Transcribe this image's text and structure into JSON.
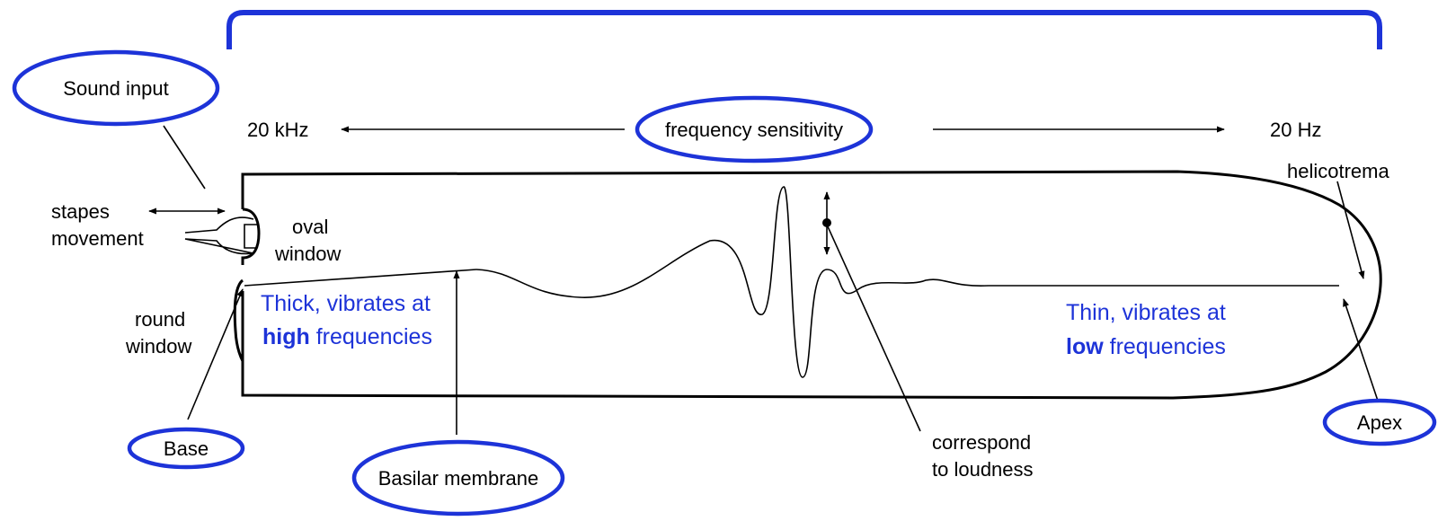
{
  "labels": {
    "sound_input": "Sound input",
    "frequency_sensitivity": "frequency sensitivity",
    "freq_high": "20 kHz",
    "freq_low": "20 Hz",
    "stapes_line1": "stapes",
    "stapes_line2": "movement",
    "oval_line1": "oval",
    "oval_line2": "window",
    "round_line1": "round",
    "round_line2": "window",
    "helicotrema": "helicotrema",
    "base": "Base",
    "basilar_membrane": "Basilar membrane",
    "apex": "Apex",
    "loudness_line1": "correspond",
    "loudness_line2": "to loudness",
    "thick_line1": "Thick, vibrates at",
    "thick_bold": "high",
    "thick_rest": " frequencies",
    "thin_line1": "Thin, vibrates at",
    "thin_bold": "low",
    "thin_rest": " frequencies"
  },
  "colors": {
    "accent": "#1d33d8",
    "ink": "#000000"
  }
}
